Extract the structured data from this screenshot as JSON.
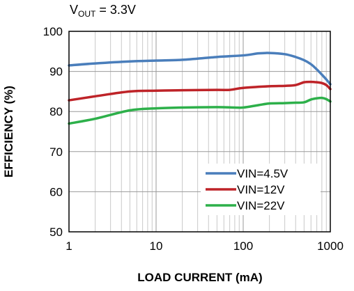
{
  "chart_data": {
    "type": "line",
    "title_main": "V",
    "title_sub": "OUT",
    "title_rest": " = 3.3V",
    "xlabel": "LOAD CURRENT (mA)",
    "ylabel": "EFFICIENCY (%)",
    "xscale": "log",
    "xlim": [
      1,
      1000
    ],
    "ylim": [
      50,
      100
    ],
    "xticks": [
      1,
      10,
      100,
      1000
    ],
    "xtick_labels": [
      "1",
      "10",
      "100",
      "1000"
    ],
    "yticks": [
      50,
      60,
      70,
      80,
      90,
      100
    ],
    "ytick_labels": [
      "50",
      "60",
      "70",
      "80",
      "90",
      "100"
    ],
    "grid": true,
    "legend_position": "bottom-right",
    "series": [
      {
        "name": "VIN=4.5V",
        "color": "#4a7ebb",
        "x": [
          1,
          2,
          5,
          10,
          20,
          50,
          100,
          150,
          200,
          300,
          400,
          500,
          600,
          700,
          800,
          900,
          1000
        ],
        "y": [
          91.5,
          92.0,
          92.5,
          92.7,
          92.9,
          93.6,
          94.0,
          94.5,
          94.6,
          94.3,
          93.6,
          92.8,
          91.8,
          90.5,
          89.2,
          88.0,
          86.8
        ]
      },
      {
        "name": "VIN=12V",
        "color": "#be2328",
        "x": [
          1,
          2,
          5,
          10,
          20,
          50,
          70,
          100,
          200,
          300,
          400,
          500,
          600,
          700,
          800,
          900,
          1000
        ],
        "y": [
          82.8,
          83.8,
          85.0,
          85.2,
          85.3,
          85.4,
          85.4,
          85.9,
          86.3,
          86.4,
          86.6,
          87.3,
          87.4,
          87.3,
          87.1,
          86.6,
          85.6
        ]
      },
      {
        "name": "VIN=22V",
        "color": "#2db04a",
        "x": [
          1,
          2,
          5,
          10,
          20,
          50,
          80,
          100,
          150,
          200,
          300,
          400,
          500,
          600,
          700,
          800,
          900,
          1000
        ],
        "y": [
          77.0,
          78.2,
          80.3,
          80.8,
          81.0,
          81.1,
          81.0,
          81.0,
          81.6,
          82.0,
          82.1,
          82.2,
          82.3,
          83.0,
          83.3,
          83.4,
          83.1,
          82.5
        ]
      }
    ]
  }
}
